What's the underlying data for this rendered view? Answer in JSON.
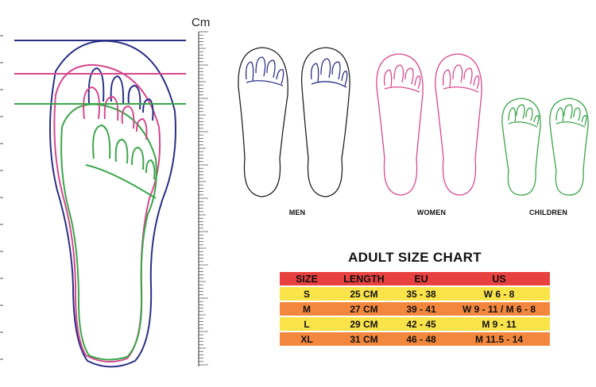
{
  "ruler": {
    "unit": "Cm"
  },
  "sole_groups": [
    {
      "label": "MEN",
      "color": "#2a2f86"
    },
    {
      "label": "WOMEN",
      "color": "#d6488f"
    },
    {
      "label": "CHILDREN",
      "color": "#3aa64a"
    }
  ],
  "outline_colors": {
    "men": "#2a2f86",
    "women": "#d6488f",
    "children": "#3aa64a"
  },
  "chart_data": {
    "type": "table",
    "title": "ADULT SIZE CHART",
    "columns": [
      "SIZE",
      "LENGTH",
      "EU",
      "US"
    ],
    "rows": [
      [
        "S",
        "25 CM",
        "35 - 38",
        "W 6 - 8"
      ],
      [
        "M",
        "27 CM",
        "39 - 41",
        "W 9 - 11 / M 6 - 8"
      ],
      [
        "L",
        "29 CM",
        "42 - 45",
        "M 9 - 11"
      ],
      [
        "XL",
        "31 CM",
        "46 - 48",
        "M 11.5 - 14"
      ]
    ],
    "header_color": "#e8413f",
    "row_colors": [
      "#fbe34a",
      "#f4873e",
      "#fbe34a",
      "#f4873e"
    ]
  }
}
